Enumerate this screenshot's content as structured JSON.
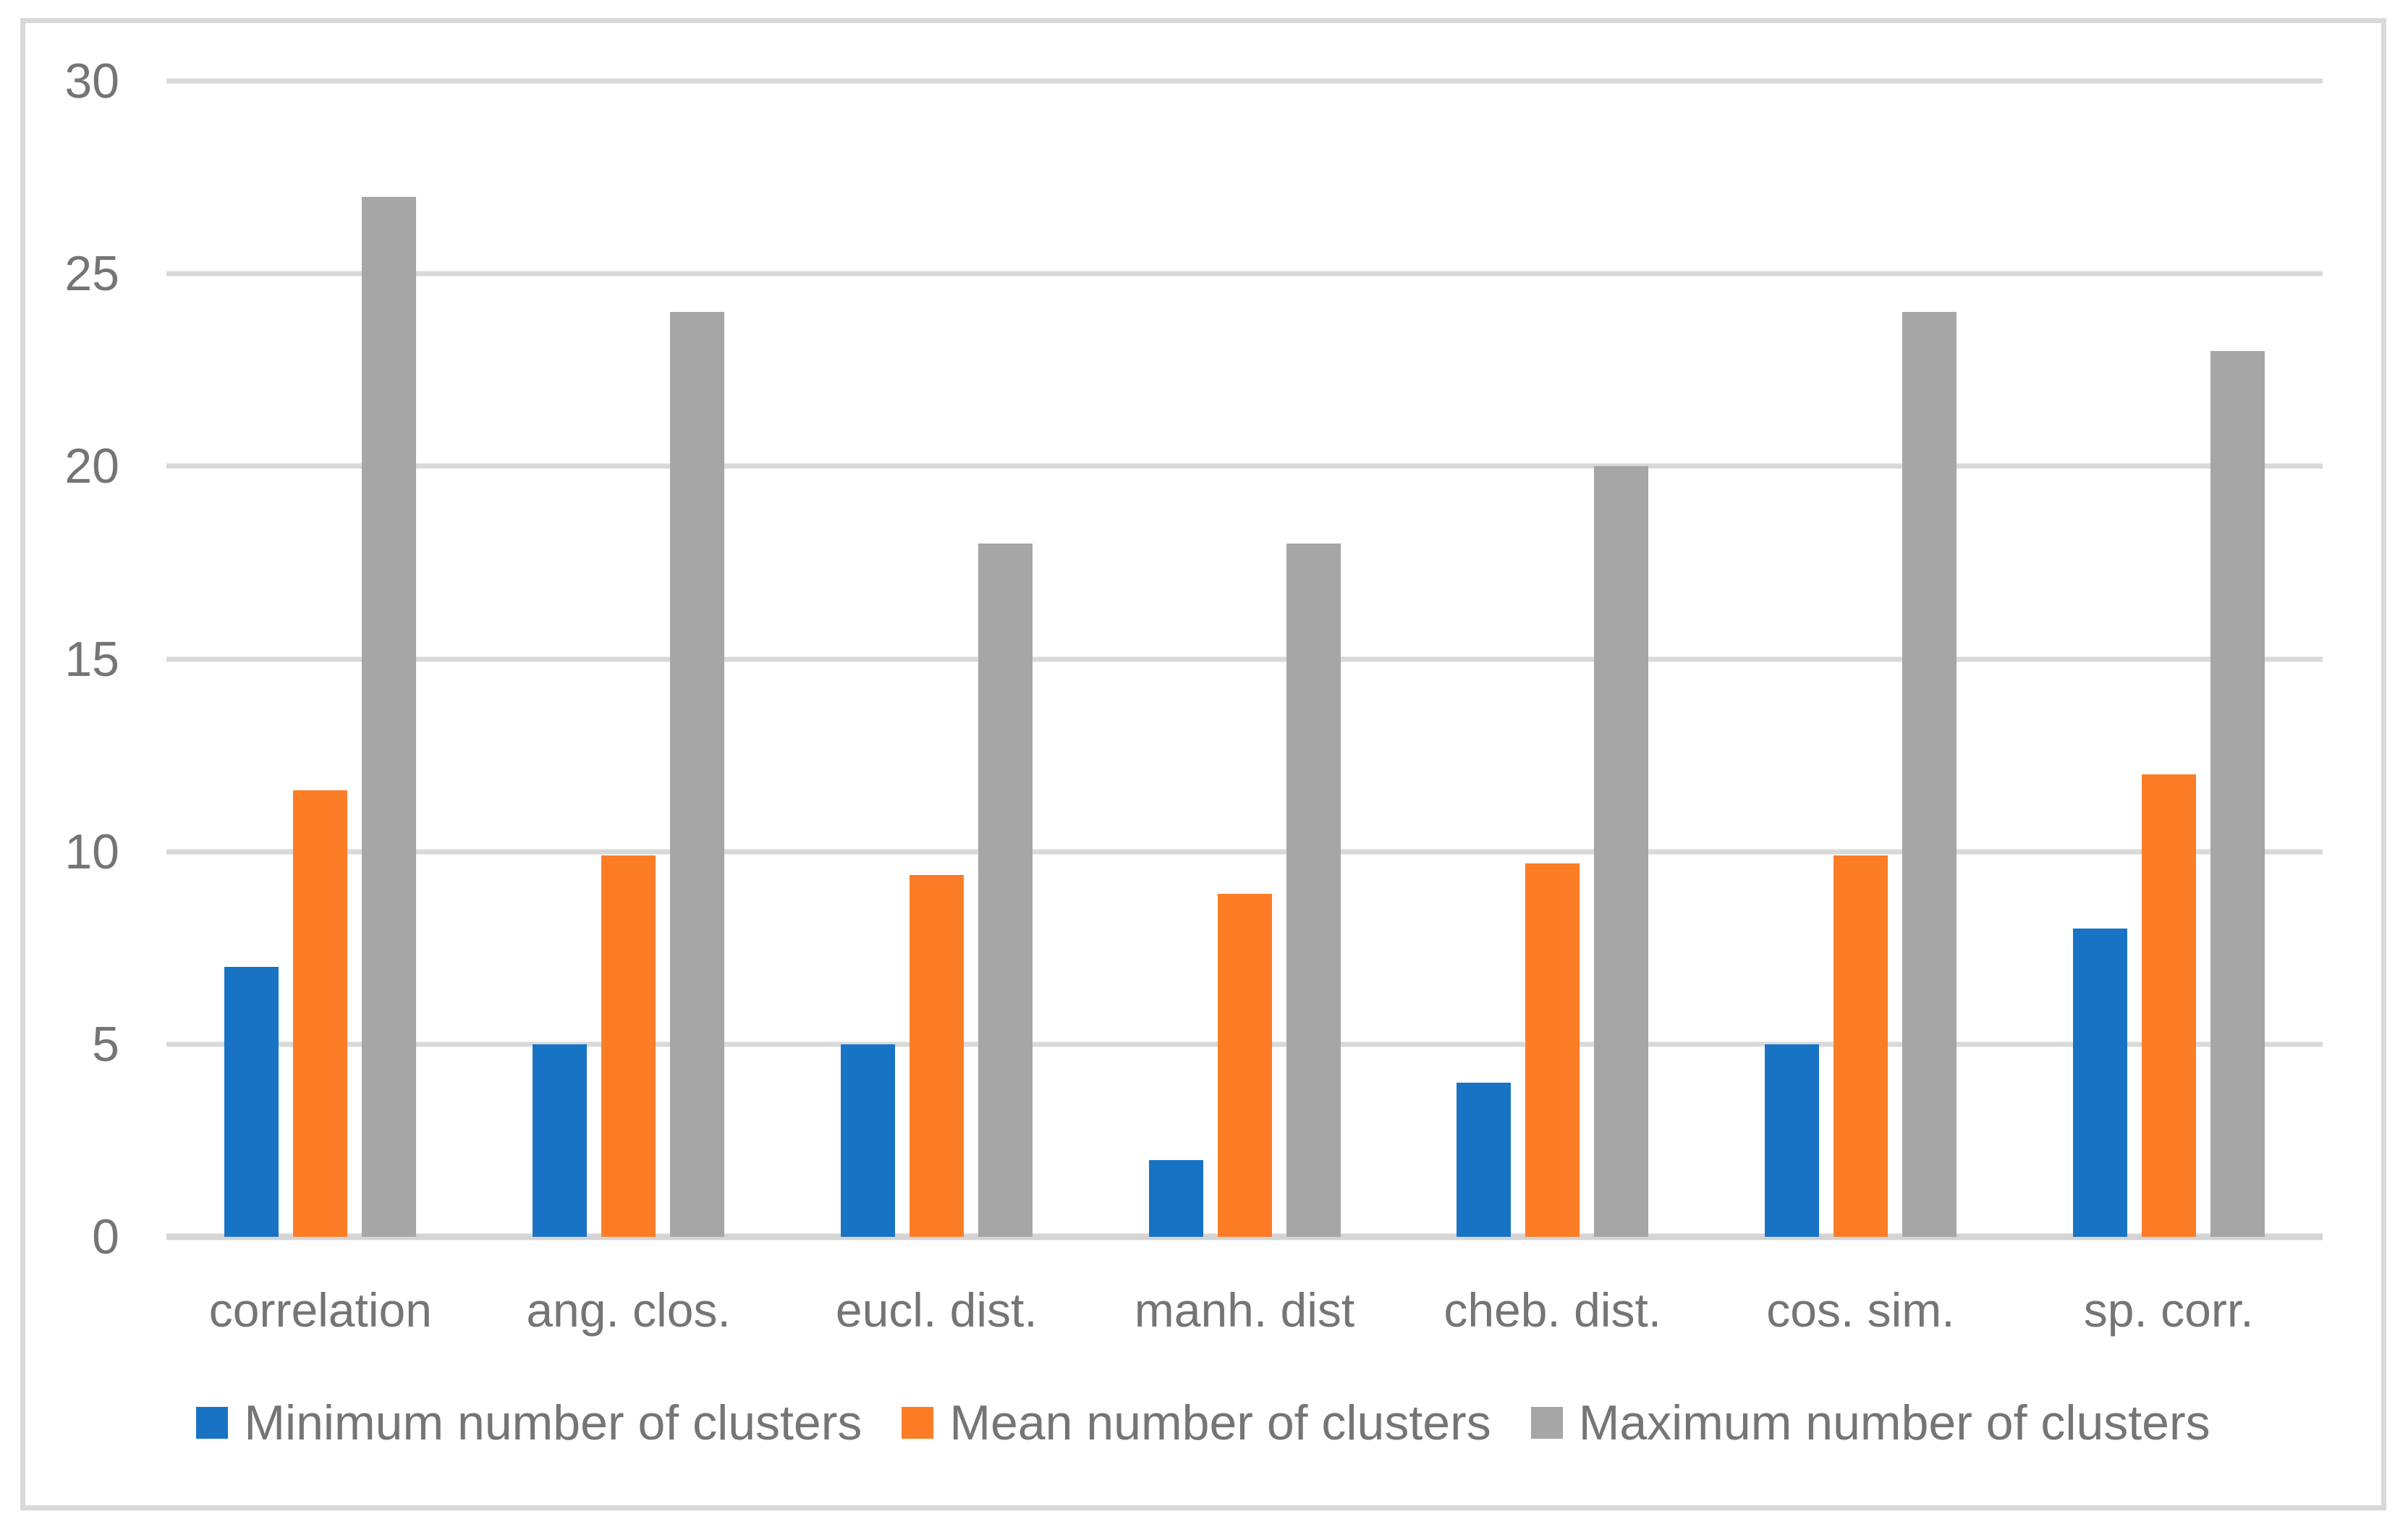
{
  "chart_data": {
    "type": "bar",
    "title": "",
    "xlabel": "",
    "ylabel": "",
    "categories": [
      "correlation",
      "ang. clos.",
      "eucl. dist.",
      "manh. dist",
      "cheb. dist.",
      "cos. sim.",
      "sp. corr."
    ],
    "series": [
      {
        "name": "Minimum number of clusters",
        "color": "#1973C5",
        "values": [
          7,
          5,
          5,
          2,
          4,
          5,
          8
        ]
      },
      {
        "name": "Mean number of clusters",
        "color": "#FC7D26",
        "values": [
          11.6,
          9.9,
          9.4,
          8.9,
          9.7,
          9.9,
          12
        ]
      },
      {
        "name": "Maximum number of clusters",
        "color": "#A6A6A6",
        "values": [
          27,
          24,
          18,
          18,
          20,
          24,
          23
        ]
      }
    ],
    "ylim": [
      0,
      30
    ],
    "yticks": [
      0,
      5,
      10,
      15,
      20,
      25,
      30
    ],
    "grid": true,
    "legend_position": "bottom"
  },
  "colors": {
    "gridline": "#D9D9D9",
    "axis_line": "#D4D4D4",
    "tick_text": "#757575",
    "frame_border": "#D9D9D9",
    "background": "#FFFFFF"
  }
}
